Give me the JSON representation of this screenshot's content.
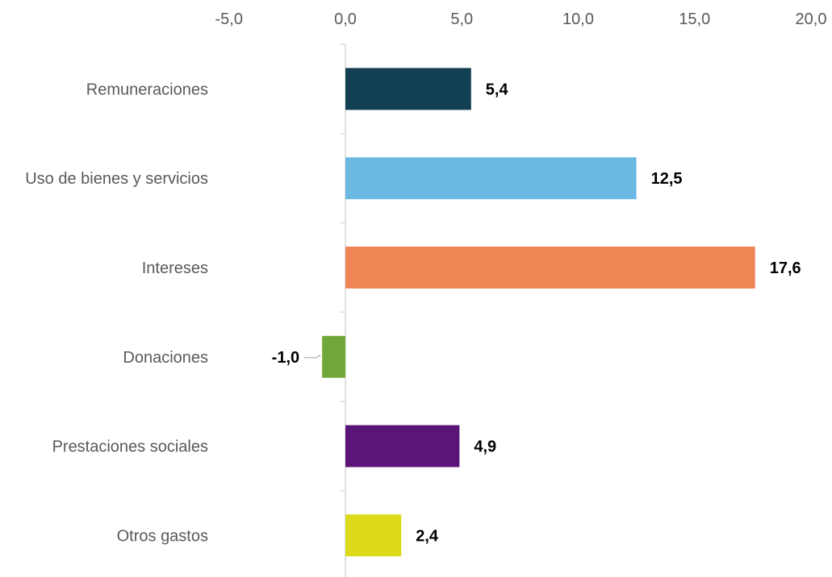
{
  "chart_data": {
    "type": "bar",
    "orientation": "horizontal",
    "categories": [
      "Remuneraciones",
      "Uso de bienes y servicios",
      "Intereses",
      "Donaciones",
      "Prestaciones sociales",
      "Otros gastos"
    ],
    "values": [
      5.4,
      12.5,
      17.6,
      -1.0,
      4.9,
      2.4
    ],
    "value_labels": [
      "5,4",
      "12,5",
      "17,6",
      "-1,0",
      "4,9",
      "2,4"
    ],
    "colors": [
      "#123f52",
      "#6bb8e2",
      "#ef8454",
      "#6fa738",
      "#5b1578",
      "#dcda1a"
    ],
    "title": "",
    "xlabel": "",
    "ylabel": "",
    "xlim": [
      -5,
      20
    ],
    "ticks": [
      -5,
      0,
      5,
      10,
      15,
      20
    ],
    "tick_labels": [
      "-5,0",
      "0,0",
      "5,0",
      "10,0",
      "15,0",
      "20,0"
    ],
    "x_axis_position": "top",
    "grid": false,
    "legend": "none"
  }
}
